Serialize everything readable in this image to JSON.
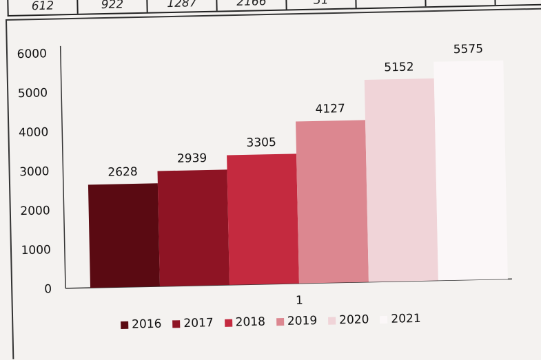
{
  "top_table": {
    "cells": [
      "612",
      "922",
      "1287",
      "2166",
      "31",
      "",
      ""
    ]
  },
  "colors": {
    "2016": "#5a0a12",
    "2017": "#8e1424",
    "2018": "#c42a3f",
    "2019": "#dc8790",
    "2020": "#f0d4d8",
    "2021": "#fbf7f8"
  },
  "chart_data": {
    "type": "bar",
    "categories": [
      "1"
    ],
    "series": [
      {
        "name": "2016",
        "values": [
          2628
        ]
      },
      {
        "name": "2017",
        "values": [
          2939
        ]
      },
      {
        "name": "2018",
        "values": [
          3305
        ]
      },
      {
        "name": "2019",
        "values": [
          4127
        ]
      },
      {
        "name": "2020",
        "values": [
          5152
        ]
      },
      {
        "name": "2021",
        "values": [
          5575
        ]
      }
    ],
    "title": "",
    "xlabel": "",
    "ylabel": "",
    "ylim": [
      0,
      6000
    ],
    "yticks": [
      "0",
      "1000",
      "2000",
      "3000",
      "4000",
      "5000",
      "6000"
    ],
    "grid": false,
    "legend": "bottom"
  }
}
